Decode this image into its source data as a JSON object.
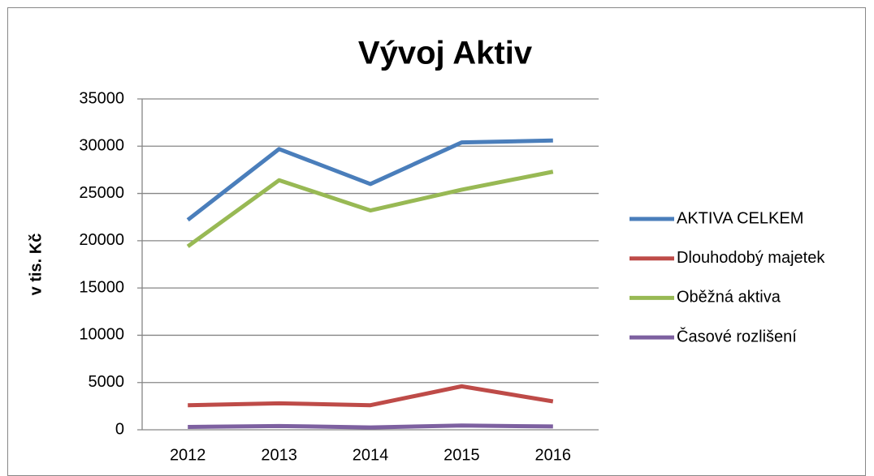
{
  "chart_data": {
    "type": "line",
    "title": "Vývoj Aktiv",
    "y_label": "v tis. Kč",
    "categories": [
      "2012",
      "2013",
      "2014",
      "2015",
      "2016"
    ],
    "series": [
      {
        "name": "AKTIVA CELKEM",
        "color": "#4a7ebb",
        "values": [
          22200,
          29700,
          26000,
          30400,
          30600
        ]
      },
      {
        "name": "Dlouhodobý majetek",
        "color": "#be4b48",
        "values": [
          2600,
          2800,
          2600,
          4600,
          3000
        ]
      },
      {
        "name": "Oběžná aktiva",
        "color": "#98b954",
        "values": [
          19400,
          26400,
          23200,
          25400,
          27300
        ]
      },
      {
        "name": "Časové rozlišení",
        "color": "#7d60a0",
        "values": [
          300,
          400,
          250,
          450,
          350
        ]
      }
    ],
    "ylim": [
      0,
      35000
    ],
    "yticks": [
      0,
      5000,
      10000,
      15000,
      20000,
      25000,
      30000,
      35000
    ],
    "grid": true,
    "legend": "right"
  }
}
